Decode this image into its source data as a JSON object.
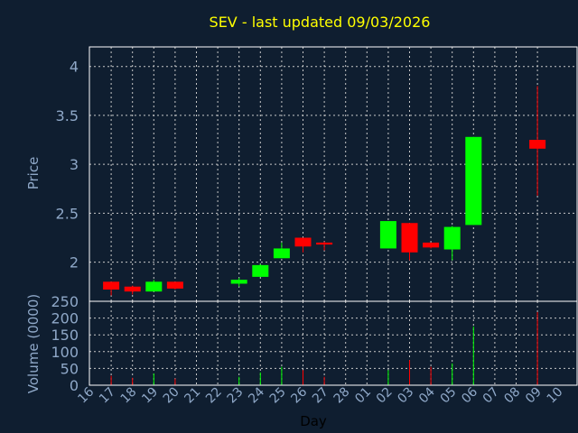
{
  "chart_data": {
    "type": "candlestick",
    "title": "SEV - last updated 09/03/2026",
    "xlabel": "Day",
    "price_ylabel": "Price",
    "volume_ylabel": "Volume (0000)",
    "x_ticks": [
      "16",
      "17",
      "18",
      "19",
      "20",
      "21",
      "22",
      "23",
      "24",
      "25",
      "26",
      "27",
      "28",
      "01",
      "02",
      "03",
      "04",
      "05",
      "06",
      "07",
      "08",
      "09",
      "10"
    ],
    "price_yticks": [
      "2",
      "2.5",
      "3",
      "3.5",
      "4"
    ],
    "price_ylim": [
      1.6,
      4.2
    ],
    "volume_yticks": [
      "0",
      "50",
      "100",
      "150",
      "200",
      "250"
    ],
    "volume_ylim": [
      0,
      250
    ],
    "grid": true,
    "colors": {
      "up": "#00ff00",
      "down": "#ff0000",
      "background": "#0f1e30",
      "title": "#ffff00",
      "axis_text": "#8fa8c8"
    },
    "candles": [
      {
        "day": "17",
        "open": 1.8,
        "high": 1.8,
        "low": 1.66,
        "close": 1.72,
        "volume": 28
      },
      {
        "day": "18",
        "open": 1.75,
        "high": 1.76,
        "low": 1.67,
        "close": 1.7,
        "volume": 22
      },
      {
        "day": "19",
        "open": 1.7,
        "high": 1.82,
        "low": 1.7,
        "close": 1.8,
        "volume": 35
      },
      {
        "day": "20",
        "open": 1.8,
        "high": 1.8,
        "low": 1.72,
        "close": 1.73,
        "volume": 20
      },
      {
        "day": "23",
        "open": 1.78,
        "high": 1.84,
        "low": 1.75,
        "close": 1.82,
        "volume": 25
      },
      {
        "day": "24",
        "open": 1.85,
        "high": 1.98,
        "low": 1.85,
        "close": 1.97,
        "volume": 38
      },
      {
        "day": "25",
        "open": 2.04,
        "high": 2.2,
        "low": 2.04,
        "close": 2.14,
        "volume": 55
      },
      {
        "day": "26",
        "open": 2.25,
        "high": 2.25,
        "low": 2.1,
        "close": 2.16,
        "volume": 45
      },
      {
        "day": "27",
        "open": 2.2,
        "high": 2.21,
        "low": 2.12,
        "close": 2.18,
        "volume": 25
      },
      {
        "day": "02",
        "open": 2.14,
        "high": 2.42,
        "low": 2.14,
        "close": 2.42,
        "volume": 45
      },
      {
        "day": "03",
        "open": 2.4,
        "high": 2.4,
        "low": 2.02,
        "close": 2.1,
        "volume": 75
      },
      {
        "day": "04",
        "open": 2.2,
        "high": 2.2,
        "low": 2.14,
        "close": 2.15,
        "volume": 55
      },
      {
        "day": "05",
        "open": 2.13,
        "high": 2.37,
        "low": 2.02,
        "close": 2.36,
        "volume": 65
      },
      {
        "day": "06",
        "open": 2.38,
        "high": 3.28,
        "low": 2.38,
        "close": 3.28,
        "volume": 175
      },
      {
        "day": "09",
        "open": 3.25,
        "high": 3.8,
        "low": 2.68,
        "close": 3.16,
        "volume": 218
      }
    ]
  }
}
